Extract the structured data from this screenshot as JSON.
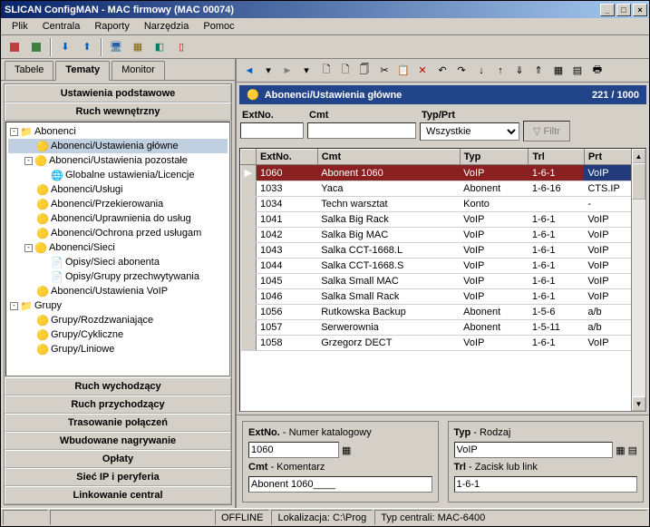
{
  "window": {
    "title": "SLICAN ConfigMAN - MAC firmowy (MAC 00074)"
  },
  "menu": [
    "Plik",
    "Centrala",
    "Raporty",
    "Narzędzia",
    "Pomoc"
  ],
  "tabs": [
    "Tabele",
    "Tematy",
    "Monitor"
  ],
  "active_tab": "Tematy",
  "accordion": {
    "top": [
      "Ustawienia podstawowe",
      "Ruch wewnętrzny"
    ],
    "bottom": [
      "Ruch wychodzący",
      "Ruch przychodzący",
      "Trasowanie połączeń",
      "Wbudowane nagrywanie",
      "Opłaty",
      "Sieć IP i peryferia",
      "Linkowanie central"
    ]
  },
  "tree": [
    {
      "level": 0,
      "exp": "-",
      "icon": "📁",
      "label": "Abonenci"
    },
    {
      "level": 1,
      "exp": "",
      "icon": "🟡",
      "label": "Abonenci/Ustawienia główne",
      "selected": true
    },
    {
      "level": 1,
      "exp": "-",
      "icon": "🟡",
      "label": "Abonenci/Ustawienia pozostałe"
    },
    {
      "level": 2,
      "exp": "",
      "icon": "🌐",
      "label": "Globalne ustawienia/Licencje"
    },
    {
      "level": 1,
      "exp": "",
      "icon": "🟡",
      "label": "Abonenci/Usługi"
    },
    {
      "level": 1,
      "exp": "",
      "icon": "🟡",
      "label": "Abonenci/Przekierowania"
    },
    {
      "level": 1,
      "exp": "",
      "icon": "🟡",
      "label": "Abonenci/Uprawnienia do usług"
    },
    {
      "level": 1,
      "exp": "",
      "icon": "🟡",
      "label": "Abonenci/Ochrona przed usługam"
    },
    {
      "level": 1,
      "exp": "-",
      "icon": "🟡",
      "label": "Abonenci/Sieci"
    },
    {
      "level": 2,
      "exp": "",
      "icon": "📄",
      "label": "Opisy/Sieci abonenta"
    },
    {
      "level": 2,
      "exp": "",
      "icon": "📄",
      "label": "Opisy/Grupy przechwytywania"
    },
    {
      "level": 1,
      "exp": "",
      "icon": "🟡",
      "label": "Abonenci/Ustawienia VoIP"
    },
    {
      "level": 0,
      "exp": "-",
      "icon": "📁",
      "label": "Grupy"
    },
    {
      "level": 1,
      "exp": "",
      "icon": "🟡",
      "label": "Grupy/Rozdzwaniające"
    },
    {
      "level": 1,
      "exp": "",
      "icon": "🟡",
      "label": "Grupy/Cykliczne"
    },
    {
      "level": 1,
      "exp": "",
      "icon": "🟡",
      "label": "Grupy/Liniowe"
    }
  ],
  "header": {
    "title": "Abonenci/Ustawienia główne",
    "count": "221 / 1000"
  },
  "filters": {
    "extno_label": "ExtNo.",
    "cmt_label": "Cmt",
    "typprt_label": "Typ/Prt",
    "typprt_value": "Wszystkie",
    "filter_btn": "Filtr"
  },
  "columns": [
    "ExtNo.",
    "Cmt",
    "Typ",
    "Trl",
    "Prt"
  ],
  "rows": [
    {
      "ExtNo": "1060",
      "Cmt": "Abonent 1060",
      "Typ": "VoIP",
      "Trl": "1-6-1",
      "Prt": "VoIP",
      "selected": true
    },
    {
      "ExtNo": "1033",
      "Cmt": "Yaca",
      "Typ": "Abonent",
      "Trl": "1-6-16",
      "Prt": "CTS.IP"
    },
    {
      "ExtNo": "1034",
      "Cmt": "Techn warsztat",
      "Typ": "Konto",
      "Trl": "",
      "Prt": "-"
    },
    {
      "ExtNo": "1041",
      "Cmt": "Salka Big Rack",
      "Typ": "VoIP",
      "Trl": "1-6-1",
      "Prt": "VoIP"
    },
    {
      "ExtNo": "1042",
      "Cmt": "Salka Big MAC",
      "Typ": "VoIP",
      "Trl": "1-6-1",
      "Prt": "VoIP"
    },
    {
      "ExtNo": "1043",
      "Cmt": "Salka CCT-1668.L",
      "Typ": "VoIP",
      "Trl": "1-6-1",
      "Prt": "VoIP"
    },
    {
      "ExtNo": "1044",
      "Cmt": "Salka CCT-1668.S",
      "Typ": "VoIP",
      "Trl": "1-6-1",
      "Prt": "VoIP"
    },
    {
      "ExtNo": "1045",
      "Cmt": "Salka Small MAC",
      "Typ": "VoIP",
      "Trl": "1-6-1",
      "Prt": "VoIP"
    },
    {
      "ExtNo": "1046",
      "Cmt": "Salka Small Rack",
      "Typ": "VoIP",
      "Trl": "1-6-1",
      "Prt": "VoIP"
    },
    {
      "ExtNo": "1056",
      "Cmt": "Rutkowska Backup",
      "Typ": "Abonent",
      "Trl": "1-5-6",
      "Prt": "a/b"
    },
    {
      "ExtNo": "1057",
      "Cmt": "Serwerownia",
      "Typ": "Abonent",
      "Trl": "1-5-11",
      "Prt": "a/b"
    },
    {
      "ExtNo": "1058",
      "Cmt": "Grzegorz DECT",
      "Typ": "VoIP",
      "Trl": "1-6-1",
      "Prt": "VoIP"
    }
  ],
  "detail": {
    "extno_label": "ExtNo.",
    "extno_desc": "- Numer katalogowy",
    "extno_value": "1060",
    "cmt_label": "Cmt",
    "cmt_desc": "- Komentarz",
    "cmt_value": "Abonent 1060____",
    "typ_label": "Typ",
    "typ_desc": "- Rodzaj",
    "typ_value": "VoIP",
    "trl_label": "Trl",
    "trl_desc": "- Zacisk lub link",
    "trl_value": "1-6-1"
  },
  "statusbar": {
    "offline": "OFFLINE",
    "loc": "Lokalizacja: C:\\Prog",
    "typ": "Typ centrali: MAC-6400"
  }
}
